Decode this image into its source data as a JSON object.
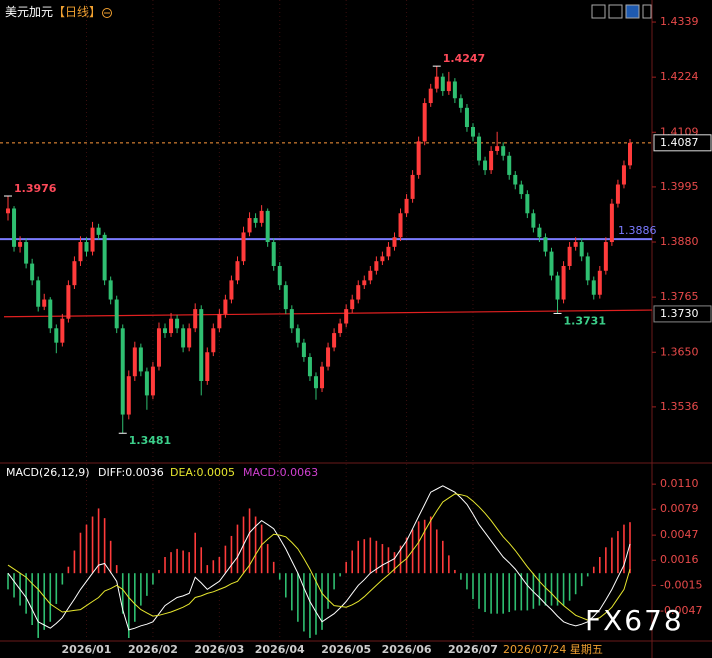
{
  "chart_data": [
    {
      "type": "candlestick",
      "title": "美元加元",
      "period": "【日线】",
      "categories": [
        null,
        null,
        null,
        null,
        null,
        null,
        null,
        null,
        null,
        null,
        null,
        null,
        null,
        "2026/01",
        null,
        null,
        null,
        null,
        null,
        null,
        null,
        null,
        null,
        null,
        "2026/02",
        null,
        null,
        null,
        null,
        null,
        null,
        null,
        null,
        null,
        null,
        "2026/03",
        null,
        null,
        null,
        null,
        null,
        null,
        null,
        null,
        null,
        "2026/04",
        null,
        null,
        null,
        null,
        null,
        null,
        null,
        null,
        null,
        null,
        "2026/05",
        null,
        null,
        null,
        null,
        null,
        null,
        null,
        null,
        null,
        "2026/06",
        null,
        null,
        null,
        null,
        null,
        null,
        null,
        null,
        null,
        null,
        "2026/07",
        null,
        null,
        null,
        null,
        null,
        null,
        null,
        null,
        null,
        null,
        null,
        null,
        null,
        null,
        null,
        null,
        null,
        null,
        null,
        null,
        null,
        null,
        null,
        null,
        null,
        null
      ],
      "ohlc": [
        [
          1.394,
          1.3976,
          1.3925,
          1.395
        ],
        [
          1.395,
          1.3955,
          1.386,
          1.387
        ],
        [
          1.387,
          1.3892,
          1.3858,
          1.388
        ],
        [
          1.388,
          1.3888,
          1.3825,
          1.3835
        ],
        [
          1.3835,
          1.3845,
          1.379,
          1.38
        ],
        [
          1.38,
          1.3808,
          1.3735,
          1.3745
        ],
        [
          1.3745,
          1.3772,
          1.3738,
          1.376
        ],
        [
          1.376,
          1.3765,
          1.369,
          1.37
        ],
        [
          1.37,
          1.3708,
          1.3648,
          1.367
        ],
        [
          1.367,
          1.373,
          1.3662,
          1.372
        ],
        [
          1.372,
          1.38,
          1.3712,
          1.379
        ],
        [
          1.379,
          1.385,
          1.3782,
          1.384
        ],
        [
          1.384,
          1.3892,
          1.383,
          1.388
        ],
        [
          1.388,
          1.389,
          1.385,
          1.386
        ],
        [
          1.386,
          1.3922,
          1.3852,
          1.391
        ],
        [
          1.391,
          1.3918,
          1.3885,
          1.3895
        ],
        [
          1.3895,
          1.39,
          1.379,
          1.38
        ],
        [
          1.38,
          1.3808,
          1.375,
          1.376
        ],
        [
          1.376,
          1.3768,
          1.369,
          1.37
        ],
        [
          1.37,
          1.3708,
          1.3481,
          1.352
        ],
        [
          1.352,
          1.3612,
          1.351,
          1.36
        ],
        [
          1.36,
          1.3672,
          1.359,
          1.366
        ],
        [
          1.366,
          1.3668,
          1.36,
          1.361
        ],
        [
          1.361,
          1.3618,
          1.353,
          1.356
        ],
        [
          1.356,
          1.363,
          1.3552,
          1.362
        ],
        [
          1.362,
          1.3712,
          1.3612,
          1.37
        ],
        [
          1.37,
          1.371,
          1.368,
          1.369
        ],
        [
          1.369,
          1.3732,
          1.3682,
          1.372
        ],
        [
          1.372,
          1.3728,
          1.369,
          1.37
        ],
        [
          1.37,
          1.3708,
          1.365,
          1.366
        ],
        [
          1.366,
          1.371,
          1.3652,
          1.37
        ],
        [
          1.37,
          1.3752,
          1.3692,
          1.374
        ],
        [
          1.374,
          1.3748,
          1.356,
          1.359
        ],
        [
          1.359,
          1.366,
          1.3582,
          1.365
        ],
        [
          1.365,
          1.371,
          1.3642,
          1.37
        ],
        [
          1.37,
          1.374,
          1.3692,
          1.373
        ],
        [
          1.373,
          1.377,
          1.3722,
          1.376
        ],
        [
          1.376,
          1.381,
          1.3752,
          1.38
        ],
        [
          1.38,
          1.385,
          1.3792,
          1.384
        ],
        [
          1.384,
          1.3912,
          1.3832,
          1.39
        ],
        [
          1.39,
          1.3942,
          1.3892,
          1.393
        ],
        [
          1.393,
          1.394,
          1.391,
          1.392
        ],
        [
          1.392,
          1.3957,
          1.3912,
          1.3945
        ],
        [
          1.3945,
          1.395,
          1.387,
          1.388
        ],
        [
          1.388,
          1.3888,
          1.382,
          1.383
        ],
        [
          1.383,
          1.3838,
          1.378,
          1.379
        ],
        [
          1.379,
          1.3798,
          1.373,
          1.374
        ],
        [
          1.374,
          1.3748,
          1.369,
          1.37
        ],
        [
          1.37,
          1.3708,
          1.366,
          1.367
        ],
        [
          1.367,
          1.3678,
          1.363,
          1.364
        ],
        [
          1.364,
          1.3648,
          1.359,
          1.36
        ],
        [
          1.36,
          1.3608,
          1.3551,
          1.3575
        ],
        [
          1.3575,
          1.363,
          1.3567,
          1.362
        ],
        [
          1.362,
          1.367,
          1.3612,
          1.366
        ],
        [
          1.366,
          1.37,
          1.3652,
          1.369
        ],
        [
          1.369,
          1.372,
          1.3682,
          1.371
        ],
        [
          1.371,
          1.375,
          1.3702,
          1.374
        ],
        [
          1.374,
          1.377,
          1.3732,
          1.376
        ],
        [
          1.376,
          1.38,
          1.3752,
          1.379
        ],
        [
          1.379,
          1.381,
          1.3782,
          1.38
        ],
        [
          1.38,
          1.383,
          1.3792,
          1.382
        ],
        [
          1.382,
          1.385,
          1.3812,
          1.384
        ],
        [
          1.384,
          1.386,
          1.3832,
          1.385
        ],
        [
          1.385,
          1.388,
          1.3842,
          1.387
        ],
        [
          1.387,
          1.39,
          1.3862,
          1.389
        ],
        [
          1.389,
          1.395,
          1.3882,
          1.394
        ],
        [
          1.394,
          1.398,
          1.3932,
          1.397
        ],
        [
          1.397,
          1.403,
          1.3962,
          1.402
        ],
        [
          1.402,
          1.41,
          1.4012,
          1.409
        ],
        [
          1.409,
          1.418,
          1.4082,
          1.417
        ],
        [
          1.417,
          1.421,
          1.4162,
          1.42
        ],
        [
          1.42,
          1.4247,
          1.4192,
          1.4225
        ],
        [
          1.4225,
          1.4232,
          1.4185,
          1.4195
        ],
        [
          1.4195,
          1.4235,
          1.4187,
          1.4215
        ],
        [
          1.4215,
          1.4222,
          1.417,
          1.418
        ],
        [
          1.418,
          1.4188,
          1.415,
          1.416
        ],
        [
          1.416,
          1.4168,
          1.411,
          1.412
        ],
        [
          1.412,
          1.4128,
          1.409,
          1.41
        ],
        [
          1.41,
          1.4108,
          1.404,
          1.405
        ],
        [
          1.405,
          1.4058,
          1.402,
          1.403
        ],
        [
          1.403,
          1.408,
          1.4022,
          1.407
        ],
        [
          1.407,
          1.411,
          1.4062,
          1.408
        ],
        [
          1.408,
          1.4088,
          1.405,
          1.406
        ],
        [
          1.406,
          1.4068,
          1.401,
          1.402
        ],
        [
          1.402,
          1.4028,
          1.399,
          1.4
        ],
        [
          1.4,
          1.4008,
          1.397,
          1.398
        ],
        [
          1.398,
          1.3988,
          1.393,
          1.394
        ],
        [
          1.394,
          1.3948,
          1.39,
          1.391
        ],
        [
          1.391,
          1.3918,
          1.388,
          1.389
        ],
        [
          1.389,
          1.3898,
          1.385,
          1.386
        ],
        [
          1.386,
          1.3868,
          1.38,
          1.381
        ],
        [
          1.381,
          1.3818,
          1.3731,
          1.376
        ],
        [
          1.376,
          1.384,
          1.3752,
          1.383
        ],
        [
          1.383,
          1.388,
          1.3822,
          1.387
        ],
        [
          1.387,
          1.389,
          1.3862,
          1.388
        ],
        [
          1.388,
          1.3888,
          1.384,
          1.385
        ],
        [
          1.385,
          1.3858,
          1.379,
          1.38
        ],
        [
          1.38,
          1.3808,
          1.376,
          1.377
        ],
        [
          1.377,
          1.383,
          1.3762,
          1.382
        ],
        [
          1.382,
          1.389,
          1.3812,
          1.388
        ],
        [
          1.388,
          1.397,
          1.3872,
          1.396
        ],
        [
          1.396,
          1.401,
          1.3952,
          1.4
        ],
        [
          1.4,
          1.405,
          1.3992,
          1.404
        ],
        [
          1.404,
          1.4095,
          1.4032,
          1.4087
        ]
      ],
      "up_color": "#ff3b3b",
      "down_color": "#2fbf71",
      "ylim": [
        1.3421,
        1.4385
      ],
      "yticks": [
        1.4339,
        1.4224,
        1.4109,
        1.3995,
        {
          "value": 1.388,
          "label": "1.3880"
        },
        1.3765,
        {
          "value": 1.365,
          "label": "1.3650"
        },
        1.3536
      ],
      "price_line": {
        "value": 1.4087,
        "color": "#ff9a3c"
      },
      "support_line": {
        "value": 1.3886,
        "color": "#7b7bff"
      },
      "trend_line": {
        "values": [
          1.3724,
          1.3738
        ],
        "color": "#e02020",
        "label": {
          "value": 1.373,
          "label": "1.3730"
        }
      },
      "annotations": [
        1.3976,
        1.4247,
        1.3481,
        1.3731
      ]
    },
    {
      "type": "macd",
      "title": "MACD(26,12,9)",
      "up_color": "#ff3b3b",
      "down_color": "#2fbf71",
      "ylim": [
        -0.0085,
        0.0125
      ],
      "yticks": [
        {
          "value": 0.011,
          "label": "0.0110"
        },
        0.0079,
        0.0047,
        0.0016,
        -0.0015,
        -0.0047
      ],
      "series": [
        {
          "name": "DIFF:0.0036",
          "color": "#ffffff",
          "values": [
            0.0,
            -0.001,
            -0.002,
            -0.003,
            -0.0045,
            -0.006,
            -0.0064,
            -0.0068,
            -0.0062,
            -0.0055,
            -0.0043,
            -0.0032,
            -0.002,
            -0.001,
            0.0,
            0.001,
            0.0012,
            0.0001,
            -0.001,
            -0.0045,
            -0.007,
            -0.0068,
            -0.0065,
            -0.0063,
            -0.006,
            -0.005,
            -0.004,
            -0.0035,
            -0.003,
            -0.0028,
            -0.0025,
            -0.0005,
            -0.0012,
            -0.002,
            -0.0015,
            -0.001,
            0.0,
            0.001,
            0.002,
            0.0035,
            0.005,
            0.0058,
            0.0065,
            0.006,
            0.0055,
            0.0043,
            0.003,
            0.0015,
            0.0,
            -0.0018,
            -0.0035,
            -0.0048,
            -0.006,
            -0.0055,
            -0.005,
            -0.0043,
            -0.0035,
            -0.0025,
            -0.0015,
            -0.0008,
            0.0,
            0.0005,
            0.001,
            0.0014,
            0.0018,
            0.0029,
            0.004,
            0.0055,
            0.007,
            0.0085,
            0.01,
            0.0104,
            0.0108,
            0.0104,
            0.01,
            0.0093,
            0.0085,
            0.0073,
            0.006,
            0.005,
            0.004,
            0.003,
            0.002,
            0.0013,
            0.0005,
            -0.0005,
            -0.0015,
            -0.0023,
            -0.003,
            -0.0038,
            -0.0045,
            -0.0053,
            -0.006,
            -0.0063,
            -0.0065,
            -0.0063,
            -0.006,
            -0.0053,
            -0.0045,
            -0.0033,
            -0.002,
            -0.0005,
            0.001,
            0.0036
          ]
        },
        {
          "name": "DEA:0.0005",
          "color": "#e6e62e",
          "values": [
            0.001,
            0.0005,
            0.0,
            -0.0005,
            -0.0013,
            -0.002,
            -0.0029,
            -0.0038,
            -0.0043,
            -0.0048,
            -0.0047,
            -0.0046,
            -0.0045,
            -0.004,
            -0.0035,
            -0.003,
            -0.0022,
            -0.0019,
            -0.0015,
            -0.002,
            -0.003,
            -0.0038,
            -0.0045,
            -0.0049,
            -0.0053,
            -0.0052,
            -0.005,
            -0.0048,
            -0.0045,
            -0.0042,
            -0.0038,
            -0.003,
            -0.0028,
            -0.0025,
            -0.0023,
            -0.002,
            -0.0017,
            -0.0013,
            -0.001,
            0.0,
            0.001,
            0.0023,
            0.0035,
            0.0042,
            0.0048,
            0.0047,
            0.0045,
            0.0038,
            0.003,
            0.0018,
            0.0005,
            -0.001,
            -0.0025,
            -0.0033,
            -0.004,
            -0.0041,
            -0.0042,
            -0.0039,
            -0.0035,
            -0.0029,
            -0.0022,
            -0.0015,
            -0.0008,
            -0.0002,
            0.0005,
            0.0012,
            0.0018,
            0.0028,
            0.0038,
            0.0052,
            0.0065,
            0.0077,
            0.0088,
            0.0093,
            0.0098,
            0.0097,
            0.0095,
            0.0089,
            0.0082,
            0.0074,
            0.0065,
            0.0055,
            0.0045,
            0.0037,
            0.0028,
            0.0018,
            0.0008,
            -0.0001,
            -0.001,
            -0.0018,
            -0.0025,
            -0.0033,
            -0.004,
            -0.0046,
            -0.0052,
            -0.0055,
            -0.0058,
            -0.0057,
            -0.0055,
            -0.0049,
            -0.0042,
            -0.0031,
            -0.002,
            0.0005
          ]
        },
        {
          "name": "MACD:0.0063",
          "color": "#d040d0",
          "values": [
            -0.002,
            -0.003,
            -0.004,
            -0.005,
            -0.0064,
            -0.008,
            -0.007,
            -0.006,
            -0.0038,
            -0.0014,
            0.0008,
            0.0028,
            0.005,
            0.006,
            0.007,
            0.008,
            0.0068,
            0.004,
            0.001,
            -0.005,
            -0.008,
            -0.006,
            -0.004,
            -0.0028,
            -0.0014,
            0.0004,
            0.002,
            0.0026,
            0.003,
            0.0028,
            0.0026,
            0.005,
            0.0032,
            0.001,
            0.0016,
            0.002,
            0.0034,
            0.0046,
            0.006,
            0.007,
            0.008,
            0.007,
            0.006,
            0.0036,
            0.0014,
            -0.0008,
            -0.003,
            -0.0046,
            -0.006,
            -0.0072,
            -0.008,
            -0.0076,
            -0.007,
            -0.0044,
            -0.002,
            -0.0004,
            0.0014,
            0.0028,
            0.004,
            0.0042,
            0.0044,
            0.004,
            0.0036,
            0.0032,
            0.0026,
            0.0034,
            0.0044,
            0.0054,
            0.0064,
            0.0066,
            0.007,
            0.0054,
            0.004,
            0.0022,
            0.0004,
            -0.0008,
            -0.002,
            -0.0032,
            -0.0044,
            -0.0048,
            -0.005,
            -0.005,
            -0.005,
            -0.0048,
            -0.0046,
            -0.0046,
            -0.0046,
            -0.0044,
            -0.004,
            -0.004,
            -0.004,
            -0.004,
            -0.004,
            -0.0034,
            -0.0026,
            -0.0016,
            -0.0004,
            0.0008,
            0.002,
            0.0032,
            0.0044,
            0.0052,
            0.006,
            0.0063
          ]
        }
      ]
    }
  ],
  "cursor_label": "2026/07/24 星期五",
  "watermark": "FX678"
}
